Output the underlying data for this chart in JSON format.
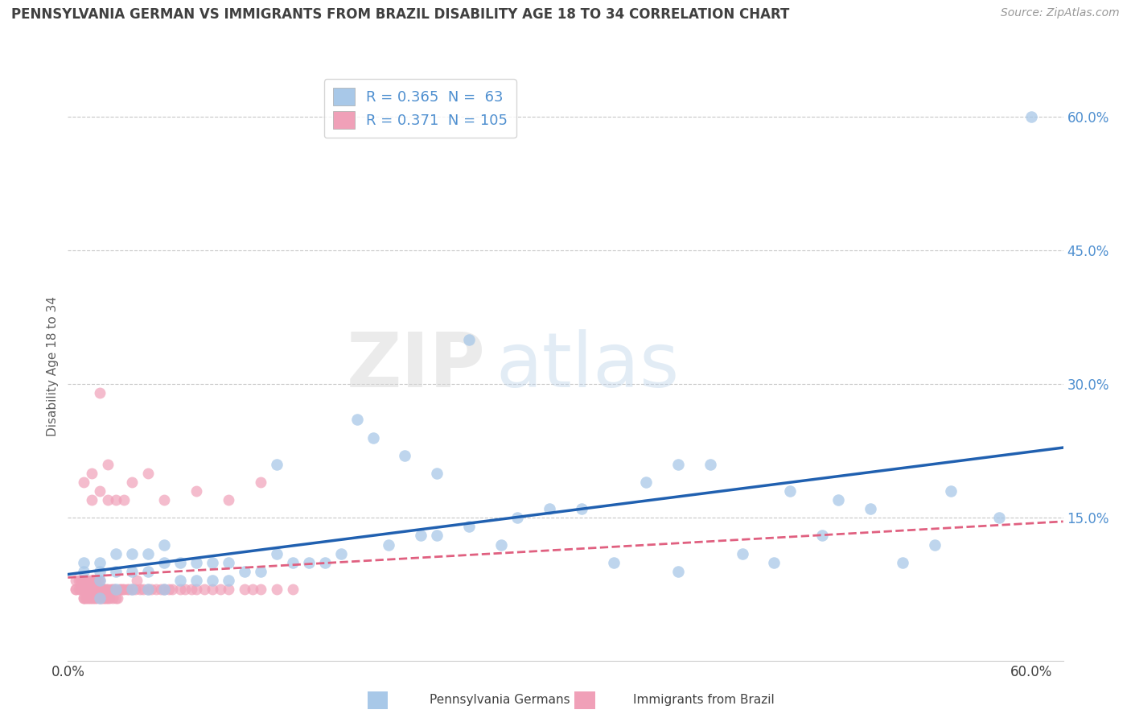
{
  "title": "PENNSYLVANIA GERMAN VS IMMIGRANTS FROM BRAZIL DISABILITY AGE 18 TO 34 CORRELATION CHART",
  "source": "Source: ZipAtlas.com",
  "ylabel": "Disability Age 18 to 34",
  "xlim": [
    0.0,
    0.62
  ],
  "ylim": [
    -0.01,
    0.65
  ],
  "ytick_positions": [
    0.0,
    0.15,
    0.3,
    0.45,
    0.6
  ],
  "ytick_labels": [
    "",
    "15.0%",
    "30.0%",
    "45.0%",
    "60.0%"
  ],
  "hline_positions": [
    0.15,
    0.3,
    0.45,
    0.6
  ],
  "legend_R1": "0.365",
  "legend_N1": "63",
  "legend_R2": "0.371",
  "legend_N2": "105",
  "color_blue": "#A8C8E8",
  "color_pink": "#F0A0B8",
  "line_blue": "#2060B0",
  "line_pink": "#E06080",
  "title_color": "#404040",
  "axis_label_color": "#606060",
  "tick_color": "#5090D0",
  "grid_color": "#C8C8C8",
  "watermark_zip": "ZIP",
  "watermark_atlas": "atlas",
  "blue_x": [
    0.01,
    0.01,
    0.02,
    0.02,
    0.02,
    0.02,
    0.03,
    0.03,
    0.03,
    0.04,
    0.04,
    0.04,
    0.05,
    0.05,
    0.05,
    0.06,
    0.06,
    0.06,
    0.07,
    0.07,
    0.08,
    0.08,
    0.09,
    0.09,
    0.1,
    0.1,
    0.11,
    0.12,
    0.13,
    0.13,
    0.14,
    0.15,
    0.16,
    0.17,
    0.18,
    0.19,
    0.2,
    0.21,
    0.22,
    0.23,
    0.23,
    0.25,
    0.25,
    0.27,
    0.28,
    0.3,
    0.32,
    0.34,
    0.36,
    0.38,
    0.38,
    0.4,
    0.42,
    0.44,
    0.45,
    0.47,
    0.48,
    0.5,
    0.52,
    0.54,
    0.55,
    0.58,
    0.6
  ],
  "blue_y": [
    0.09,
    0.1,
    0.06,
    0.08,
    0.09,
    0.1,
    0.07,
    0.09,
    0.11,
    0.07,
    0.09,
    0.11,
    0.07,
    0.09,
    0.11,
    0.07,
    0.1,
    0.12,
    0.08,
    0.1,
    0.08,
    0.1,
    0.08,
    0.1,
    0.08,
    0.1,
    0.09,
    0.09,
    0.11,
    0.21,
    0.1,
    0.1,
    0.1,
    0.11,
    0.26,
    0.24,
    0.12,
    0.22,
    0.13,
    0.13,
    0.2,
    0.14,
    0.35,
    0.12,
    0.15,
    0.16,
    0.16,
    0.1,
    0.19,
    0.09,
    0.21,
    0.21,
    0.11,
    0.1,
    0.18,
    0.13,
    0.17,
    0.16,
    0.1,
    0.12,
    0.18,
    0.15,
    0.6
  ],
  "pink_x": [
    0.005,
    0.005,
    0.005,
    0.007,
    0.007,
    0.008,
    0.008,
    0.009,
    0.009,
    0.01,
    0.01,
    0.01,
    0.01,
    0.01,
    0.011,
    0.011,
    0.011,
    0.012,
    0.012,
    0.012,
    0.013,
    0.013,
    0.014,
    0.014,
    0.014,
    0.015,
    0.015,
    0.015,
    0.016,
    0.016,
    0.016,
    0.017,
    0.017,
    0.017,
    0.018,
    0.018,
    0.018,
    0.019,
    0.019,
    0.02,
    0.02,
    0.02,
    0.021,
    0.021,
    0.022,
    0.022,
    0.023,
    0.023,
    0.024,
    0.024,
    0.025,
    0.025,
    0.026,
    0.027,
    0.028,
    0.028,
    0.029,
    0.03,
    0.031,
    0.032,
    0.033,
    0.034,
    0.035,
    0.037,
    0.038,
    0.04,
    0.042,
    0.043,
    0.045,
    0.047,
    0.05,
    0.052,
    0.055,
    0.058,
    0.06,
    0.063,
    0.065,
    0.07,
    0.073,
    0.077,
    0.08,
    0.085,
    0.09,
    0.095,
    0.1,
    0.11,
    0.115,
    0.12,
    0.13,
    0.14,
    0.015,
    0.02,
    0.025,
    0.03,
    0.04,
    0.05,
    0.06,
    0.08,
    0.1,
    0.12,
    0.02,
    0.035,
    0.015,
    0.01,
    0.025
  ],
  "pink_y": [
    0.07,
    0.07,
    0.08,
    0.07,
    0.08,
    0.07,
    0.08,
    0.07,
    0.08,
    0.06,
    0.06,
    0.07,
    0.07,
    0.08,
    0.06,
    0.07,
    0.08,
    0.06,
    0.07,
    0.08,
    0.06,
    0.07,
    0.06,
    0.07,
    0.08,
    0.06,
    0.07,
    0.08,
    0.06,
    0.07,
    0.08,
    0.06,
    0.07,
    0.08,
    0.06,
    0.07,
    0.08,
    0.07,
    0.08,
    0.06,
    0.07,
    0.08,
    0.06,
    0.07,
    0.06,
    0.07,
    0.06,
    0.07,
    0.06,
    0.07,
    0.06,
    0.07,
    0.06,
    0.07,
    0.06,
    0.07,
    0.07,
    0.06,
    0.06,
    0.07,
    0.07,
    0.07,
    0.07,
    0.07,
    0.07,
    0.07,
    0.07,
    0.08,
    0.07,
    0.07,
    0.07,
    0.07,
    0.07,
    0.07,
    0.07,
    0.07,
    0.07,
    0.07,
    0.07,
    0.07,
    0.07,
    0.07,
    0.07,
    0.07,
    0.07,
    0.07,
    0.07,
    0.07,
    0.07,
    0.07,
    0.17,
    0.18,
    0.21,
    0.17,
    0.19,
    0.2,
    0.17,
    0.18,
    0.17,
    0.19,
    0.29,
    0.17,
    0.2,
    0.19,
    0.17
  ]
}
